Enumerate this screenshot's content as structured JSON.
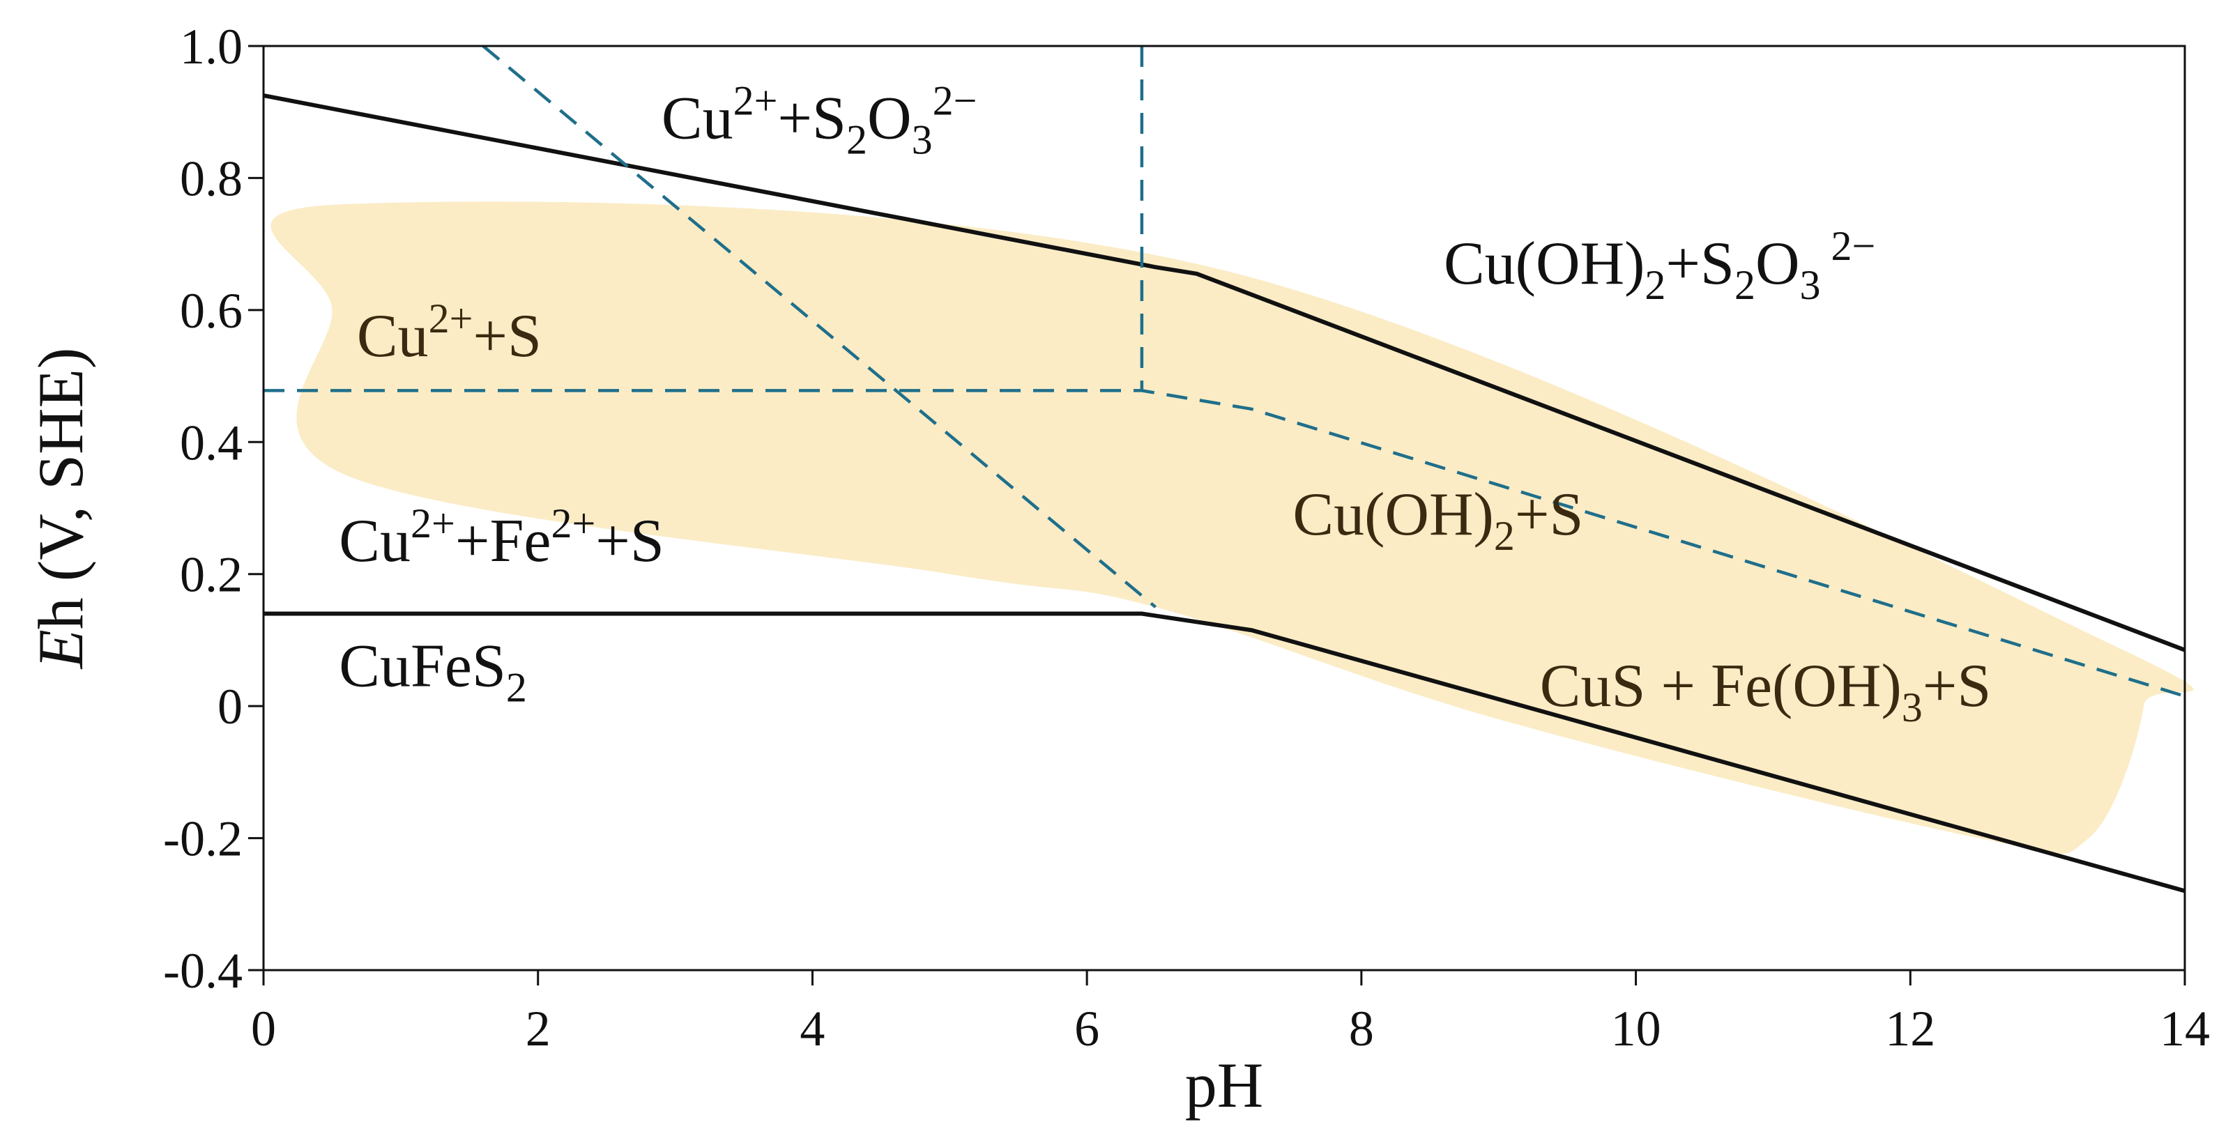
{
  "chart_data": {
    "type": "line",
    "title": "",
    "xlabel": "pH",
    "ylabel_italic": "E",
    "ylabel_rest": "h (V, SHE)",
    "xlim": [
      0,
      14
    ],
    "ylim": [
      -0.4,
      1.0
    ],
    "x_ticks": [
      0,
      2,
      4,
      6,
      8,
      10,
      12,
      14
    ],
    "y_ticks": [
      1.0,
      0.8,
      0.6,
      0.4,
      0.2,
      0,
      -0.2,
      -0.4
    ],
    "x_tick_labels": [
      "0",
      "2",
      "4",
      "6",
      "8",
      "10",
      "12",
      "14"
    ],
    "y_tick_labels": [
      "1.0",
      "0.8",
      "0.6",
      "0.4",
      "0.2",
      "0",
      "-0.2",
      "-0.4"
    ],
    "grid": false,
    "colors": {
      "solid": "#111111",
      "dashed": "#1f6f8b",
      "shade": "#fbecc6"
    },
    "series": [
      {
        "style": "solid",
        "points": [
          [
            0,
            0.925
          ],
          [
            6.5,
            0.665
          ],
          [
            6.8,
            0.655
          ],
          [
            14,
            0.085
          ]
        ]
      },
      {
        "style": "solid",
        "points": [
          [
            0,
            0.14
          ],
          [
            6.4,
            0.14
          ],
          [
            7.2,
            0.115
          ],
          [
            14,
            -0.28
          ]
        ]
      },
      {
        "style": "dashed",
        "points": [
          [
            1.6,
            1.0
          ],
          [
            6.5,
            0.15
          ]
        ]
      },
      {
        "style": "dashed",
        "points": [
          [
            0,
            0.478
          ],
          [
            6.4,
            0.478
          ],
          [
            7.2,
            0.45
          ],
          [
            14,
            0.015
          ]
        ]
      },
      {
        "style": "dashed",
        "points": [
          [
            6.4,
            1.0
          ],
          [
            6.4,
            0.478
          ]
        ]
      }
    ],
    "shaded_region": [
      [
        0.55,
        0.76
      ],
      [
        7,
        0.66
      ],
      [
        13.5,
        0.09
      ],
      [
        13.7,
        0.0
      ],
      [
        13.3,
        -0.2
      ],
      [
        12.5,
        -0.2
      ],
      [
        9,
        -0.02
      ],
      [
        6.5,
        0.15
      ],
      [
        5,
        0.2
      ],
      [
        0.6,
        0.35
      ],
      [
        0.5,
        0.6
      ]
    ],
    "annotations": [
      {
        "id": "cu-s2o3",
        "x": 2.9,
        "y": 0.86,
        "parts": [
          [
            "Cu",
            "n"
          ],
          [
            "2+",
            "sup"
          ],
          [
            "+S",
            "n"
          ],
          [
            "2",
            "sub"
          ],
          [
            "O",
            "n"
          ],
          [
            "3",
            "sub"
          ],
          [
            "2−",
            "sup"
          ]
        ]
      },
      {
        "id": "cuoh2-s2o3",
        "x": 8.6,
        "y": 0.64,
        "parts": [
          [
            "Cu(OH)",
            "n"
          ],
          [
            "2",
            "sub"
          ],
          [
            "+S",
            "n"
          ],
          [
            "2",
            "sub"
          ],
          [
            "O",
            "n"
          ],
          [
            "3",
            "sub"
          ],
          [
            " 2−",
            "sup"
          ]
        ]
      },
      {
        "id": "cu-s",
        "x": 0.68,
        "y": 0.53,
        "inside": true,
        "parts": [
          [
            "Cu",
            "n"
          ],
          [
            "2+",
            "sup"
          ],
          [
            "+S",
            "n"
          ]
        ]
      },
      {
        "id": "cu-fe-s",
        "x": 0.55,
        "y": 0.22,
        "parts": [
          [
            "Cu",
            "n"
          ],
          [
            "2+",
            "sup"
          ],
          [
            "+Fe",
            "n"
          ],
          [
            "2+",
            "sup"
          ],
          [
            "+S",
            "n"
          ]
        ]
      },
      {
        "id": "cuoh2-s",
        "x": 7.5,
        "y": 0.26,
        "inside": true,
        "parts": [
          [
            "Cu(OH)",
            "n"
          ],
          [
            "2",
            "sub"
          ],
          [
            "+S",
            "n"
          ]
        ]
      },
      {
        "id": "cufes2",
        "x": 0.55,
        "y": 0.03,
        "parts": [
          [
            "CuFeS",
            "n"
          ],
          [
            "2",
            "sub"
          ]
        ]
      },
      {
        "id": "cus-feoh3-s",
        "x": 9.3,
        "y": 0.0,
        "inside": true,
        "parts": [
          [
            "CuS + Fe(OH)",
            "n"
          ],
          [
            "3",
            "sub"
          ],
          [
            "+S",
            "n"
          ]
        ]
      }
    ]
  }
}
